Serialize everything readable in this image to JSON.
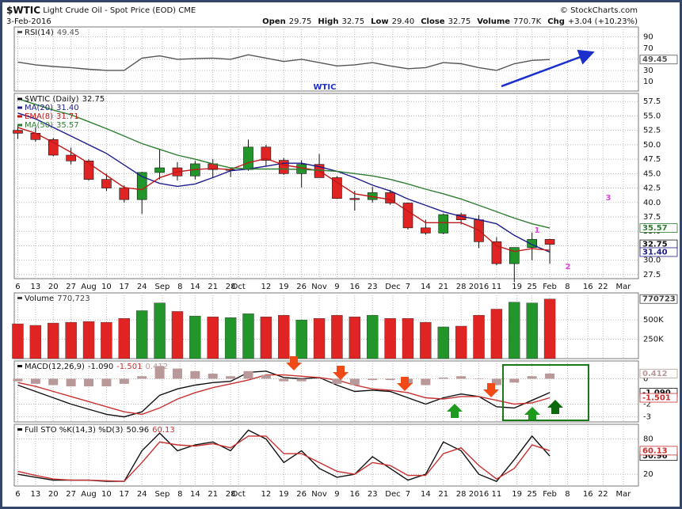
{
  "header": {
    "symbol": "$WTIC",
    "name": "Light Crude Oil - Spot Price (EOD)",
    "exchange": "CME",
    "date": "3-Feb-2016",
    "credit": "© StockCharts.com",
    "quote": [
      [
        "Open",
        "29.75"
      ],
      [
        "High",
        "32.75"
      ],
      [
        "Low",
        "29.40"
      ],
      [
        "Close",
        "32.75"
      ],
      [
        "Volume",
        "770.7K"
      ],
      [
        "Chg",
        "+3.04 (+10.23%)"
      ]
    ]
  },
  "chart_data": [
    {
      "type": "line",
      "legend": "RSI(14)",
      "annotations": [
        "WTIC"
      ],
      "x": [
        0,
        1,
        2,
        3,
        4,
        5,
        6,
        7,
        8,
        9,
        10,
        11,
        12,
        13,
        14,
        15,
        16,
        17,
        18,
        19,
        20,
        21,
        22,
        23,
        24,
        25,
        26,
        27,
        28,
        29,
        30
      ],
      "xlim": [
        -0.2,
        35
      ],
      "ylim": [
        -7,
        108
      ],
      "yticks": [
        90,
        70,
        50,
        30,
        10
      ],
      "series": [
        {
          "color": "#555555",
          "values": [
            45,
            40,
            37,
            35,
            32,
            30,
            30,
            52,
            56,
            50,
            51,
            52,
            50,
            58,
            52,
            46,
            50,
            44,
            38,
            40,
            44,
            38,
            33,
            35,
            44,
            42,
            35,
            30,
            42,
            48,
            49.45
          ]
        }
      ]
    },
    {
      "type": "candlestick",
      "name": "$WTIC (Daily)",
      "up_color": "#22962a",
      "down_color": "#e02424",
      "annotations": [
        "1",
        "2",
        "3"
      ],
      "x": [
        0,
        1,
        2,
        3,
        4,
        5,
        6,
        7,
        8,
        9,
        10,
        11,
        12,
        13,
        14,
        15,
        16,
        17,
        18,
        19,
        20,
        21,
        22,
        23,
        24,
        25,
        26,
        27,
        28,
        29,
        30
      ],
      "open": [
        52.5,
        52,
        50.9,
        48.2,
        47.2,
        44,
        42.5,
        40.5,
        45.2,
        46,
        44.6,
        46.7,
        45.7,
        45.7,
        49.6,
        47.3,
        45,
        46.6,
        44.3,
        40.7,
        40.5,
        41.7,
        39.9,
        35.6,
        34.7,
        37.9,
        37,
        33.2,
        29.4,
        32.2,
        33.6
      ],
      "high": [
        53.5,
        53,
        51.2,
        49.5,
        47.5,
        45,
        43,
        45.3,
        49.3,
        47,
        47.2,
        47.5,
        46,
        50.9,
        50,
        47.7,
        47.3,
        48.4,
        44.6,
        42,
        42.7,
        42.2,
        40,
        37,
        38.1,
        38.2,
        37.8,
        34,
        32.2,
        34.8,
        33.7
      ],
      "low": [
        51,
        50.5,
        48,
        46.6,
        43.8,
        42,
        40,
        38,
        44,
        43.8,
        44,
        44.3,
        44.4,
        45.5,
        46.2,
        44.8,
        42.6,
        44.3,
        40.6,
        38.6,
        40,
        39.6,
        35.3,
        34.4,
        34.5,
        36.2,
        32.1,
        29.1,
        26.2,
        30,
        29.4
      ],
      "close": [
        52,
        50.9,
        48.2,
        47.2,
        44,
        42.5,
        40.5,
        45.2,
        46,
        44.6,
        46.7,
        45.7,
        45.7,
        49.6,
        47.3,
        45,
        46.6,
        44.3,
        40.7,
        40.5,
        41.7,
        39.9,
        35.6,
        34.7,
        37.9,
        37,
        33.2,
        29.4,
        32.2,
        33.6,
        32.75
      ],
      "series": [
        {
          "name": "MA(20)",
          "color": "#1c1c8c",
          "values": [
            55.5,
            54.5,
            53,
            51.5,
            50,
            48.5,
            46.5,
            44.5,
            43.3,
            42.8,
            43.2,
            44.3,
            45.5,
            45.8,
            46.3,
            46.8,
            46.8,
            46.2,
            45.4,
            44.3,
            43,
            42,
            40.6,
            39.5,
            38.4,
            37.6,
            37,
            36.3,
            34.3,
            32.7,
            31.4
          ],
          "value_labels": [
            null,
            null,
            null,
            null,
            null,
            null,
            null,
            null,
            null,
            null,
            null,
            null,
            null,
            null,
            null,
            null,
            null,
            null,
            null,
            null,
            null,
            null,
            null,
            null,
            null,
            null,
            null,
            null,
            null,
            null,
            "31.40"
          ]
        },
        {
          "name": "EMA(8)",
          "color": "#c01818",
          "tagged": false,
          "values": [
            53,
            52,
            50.4,
            48.7,
            46.8,
            44.7,
            42.6,
            42.2,
            44.3,
            45.3,
            45.7,
            45.9,
            45.7,
            46.9,
            47.6,
            46.5,
            46,
            45.5,
            43.5,
            41.5,
            41,
            40.5,
            38.5,
            36.5,
            36.5,
            36.5,
            35.2,
            32.5,
            31.5,
            32,
            31.71
          ]
        },
        {
          "name": "MA(50)",
          "color": "#2e7d32",
          "values": [
            58,
            57,
            56,
            55.2,
            54,
            52.8,
            51.5,
            50.2,
            49.2,
            48.2,
            47.5,
            46.7,
            46,
            45.8,
            45.8,
            45.8,
            45.7,
            45.6,
            45.4,
            45,
            44.6,
            44,
            43.2,
            42.3,
            41.5,
            40.6,
            39.5,
            38.4,
            37.3,
            36.3,
            35.57
          ]
        }
      ],
      "xlim": [
        -0.2,
        35
      ],
      "ylim": [
        26.8,
        58.9
      ],
      "yticks": [
        57.5,
        {
          "value": 55,
          "label": "55.0"
        },
        52.5,
        {
          "value": 50,
          "label": "50.0"
        },
        47.5,
        {
          "value": 45,
          "label": "45.0"
        },
        42.5,
        {
          "value": 40,
          "label": "40.0"
        },
        37.5,
        {
          "value": 35,
          "label": "35.0"
        },
        32.5,
        {
          "value": 30,
          "label": "30.0"
        },
        27.5
      ],
      "xticks": [
        {
          "value": 0,
          "label": "6"
        },
        {
          "value": 1,
          "label": "13"
        },
        {
          "value": 2,
          "label": "20"
        },
        {
          "value": 3,
          "label": "27"
        },
        {
          "value": 4,
          "label": "Aug"
        },
        {
          "value": 5,
          "label": "10"
        },
        {
          "value": 6,
          "label": "17"
        },
        {
          "value": 7,
          "label": "24"
        },
        {
          "value": 8.15,
          "label": "Sep"
        },
        {
          "value": 9.15,
          "label": "8"
        },
        {
          "value": 10,
          "label": "14"
        },
        {
          "value": 11,
          "label": "21"
        },
        {
          "value": 12,
          "label": "28"
        },
        {
          "value": 12.45,
          "label": "Oct"
        },
        {
          "value": 14,
          "label": "12"
        },
        {
          "value": 15,
          "label": "19"
        },
        {
          "value": 16,
          "label": "26"
        },
        {
          "value": 17,
          "label": "Nov"
        },
        {
          "value": 18,
          "label": "9"
        },
        {
          "value": 19,
          "label": "16"
        },
        {
          "value": 20,
          "label": "23"
        },
        {
          "value": 21.15,
          "label": "Dec"
        },
        {
          "value": 22,
          "label": "7"
        },
        {
          "value": 23,
          "label": "14"
        },
        {
          "value": 24,
          "label": "21"
        },
        {
          "value": 25,
          "label": "28"
        },
        {
          "value": 26,
          "label": "2016"
        },
        {
          "value": 27,
          "label": "11"
        },
        {
          "value": 28.15,
          "label": "19"
        },
        {
          "value": 29,
          "label": "25"
        },
        {
          "value": 30,
          "label": "Feb"
        },
        {
          "value": 31,
          "label": "8"
        },
        {
          "value": 32.15,
          "label": "16"
        },
        {
          "value": 33,
          "label": "22"
        },
        {
          "value": 34.15,
          "label": "Mar"
        }
      ]
    },
    {
      "type": "bar",
      "legend": "Volume",
      "x": [
        0,
        1,
        2,
        3,
        4,
        5,
        6,
        7,
        8,
        9,
        10,
        11,
        12,
        13,
        14,
        15,
        16,
        17,
        18,
        19,
        20,
        21,
        22,
        23,
        24,
        25,
        26,
        27,
        28,
        29,
        30
      ],
      "xlim": [
        -0.2,
        35
      ],
      "ylim": [
        0,
        850000
      ],
      "yticks": [
        {
          "value": 500000,
          "label": "500K"
        },
        {
          "value": 250000,
          "label": "250K"
        }
      ],
      "series": [
        {
          "color": "#444444",
          "legend_value": "770,723",
          "values": [
            450000,
            430000,
            460000,
            470000,
            480000,
            470000,
            520000,
            620000,
            720000,
            610000,
            550000,
            540000,
            530000,
            580000,
            540000,
            560000,
            500000,
            520000,
            560000,
            540000,
            560000,
            520000,
            520000,
            470000,
            410000,
            420000,
            560000,
            640000,
            730000,
            720000,
            770723
          ]
        }
      ]
    },
    {
      "type": "line",
      "legend": "MACD(12,26,9)",
      "x": [
        0,
        1,
        2,
        3,
        4,
        5,
        6,
        7,
        8,
        9,
        10,
        11,
        12,
        13,
        14,
        15,
        16,
        17,
        18,
        19,
        20,
        21,
        22,
        23,
        24,
        25,
        26,
        27,
        28,
        29,
        30
      ],
      "xlim": [
        -0.2,
        35
      ],
      "ylim": [
        -3.4,
        1.4
      ],
      "yticks": [
        0,
        -2,
        -3
      ],
      "series": [
        {
          "color": "#111111",
          "values": [
            -0.5,
            -1,
            -1.5,
            -2,
            -2.4,
            -2.8,
            -3,
            -2.6,
            -1.3,
            -0.8,
            -0.5,
            -0.3,
            -0.2,
            0.5,
            0.6,
            0.1,
            0,
            0.1,
            -0.5,
            -1,
            -0.9,
            -1,
            -1.5,
            -2,
            -1.5,
            -1.2,
            -1.4,
            -2.2,
            -2.3,
            -1.7,
            -1.09
          ],
          "value_labels": [
            null,
            null,
            null,
            null,
            null,
            null,
            null,
            null,
            null,
            null,
            null,
            null,
            null,
            null,
            null,
            null,
            null,
            null,
            null,
            null,
            null,
            null,
            null,
            null,
            null,
            null,
            null,
            null,
            null,
            null,
            "-1.090"
          ]
        },
        {
          "color": "#c83030",
          "values": [
            -0.3,
            -0.6,
            -1,
            -1.4,
            -1.8,
            -2.2,
            -2.6,
            -2.8,
            -2.3,
            -1.6,
            -1.1,
            -0.7,
            -0.4,
            -0.1,
            0.3,
            0.3,
            0.2,
            0.1,
            -0.1,
            -0.5,
            -0.8,
            -0.9,
            -1.1,
            -1.5,
            -1.6,
            -1.4,
            -1.4,
            -1.7,
            -2,
            -1.9,
            -1.501
          ]
        },
        {
          "color": "#b89898",
          "style": "histogram",
          "values": [
            -0.2,
            -0.4,
            -0.5,
            -0.6,
            -0.6,
            -0.6,
            -0.4,
            0.2,
            1,
            0.8,
            0.6,
            0.4,
            0.2,
            0.6,
            0.3,
            -0.2,
            -0.2,
            0,
            -0.4,
            -0.5,
            -0.1,
            -0.1,
            -0.4,
            -0.5,
            0.1,
            0.2,
            0,
            -0.5,
            -0.3,
            0.2,
            0.412
          ]
        }
      ]
    },
    {
      "type": "line",
      "legend": "Full STO %K(14,3) %D(3)",
      "x": [
        0,
        1,
        2,
        3,
        4,
        5,
        6,
        7,
        8,
        9,
        10,
        11,
        12,
        13,
        14,
        15,
        16,
        17,
        18,
        19,
        20,
        21,
        22,
        23,
        24,
        25,
        26,
        27,
        28,
        29,
        30
      ],
      "xlim": [
        -0.2,
        35
      ],
      "ylim": [
        0,
        105
      ],
      "yticks": [
        80,
        20
      ],
      "series": [
        {
          "color": "#111111",
          "values": [
            20,
            15,
            10,
            10,
            10,
            8,
            8,
            60,
            90,
            60,
            70,
            75,
            60,
            95,
            80,
            40,
            60,
            30,
            15,
            20,
            50,
            30,
            10,
            20,
            75,
            60,
            20,
            8,
            45,
            85,
            50.96
          ]
        },
        {
          "color": "#c83030",
          "values": [
            25,
            18,
            12,
            10,
            10,
            9,
            8,
            40,
            75,
            70,
            68,
            72,
            65,
            85,
            85,
            55,
            55,
            40,
            25,
            20,
            40,
            35,
            18,
            18,
            55,
            65,
            35,
            12,
            30,
            70,
            60.13
          ]
        }
      ],
      "xticks": [
        {
          "value": 0,
          "label": "6"
        },
        {
          "value": 1,
          "label": "13"
        },
        {
          "value": 2,
          "label": "20"
        },
        {
          "value": 3,
          "label": "27"
        },
        {
          "value": 4,
          "label": "Aug"
        },
        {
          "value": 5,
          "label": "10"
        },
        {
          "value": 6,
          "label": "17"
        },
        {
          "value": 7,
          "label": "24"
        },
        {
          "value": 8.15,
          "label": "Sep"
        },
        {
          "value": 9.15,
          "label": "8"
        },
        {
          "value": 10,
          "label": "14"
        },
        {
          "value": 11,
          "label": "21"
        },
        {
          "value": 12,
          "label": "28"
        },
        {
          "value": 12.45,
          "label": "Oct"
        },
        {
          "value": 14,
          "label": "12"
        },
        {
          "value": 15,
          "label": "19"
        },
        {
          "value": 16,
          "label": "26"
        },
        {
          "value": 17,
          "label": "Nov"
        },
        {
          "value": 18,
          "label": "9"
        },
        {
          "value": 19,
          "label": "16"
        },
        {
          "value": 20,
          "label": "23"
        },
        {
          "value": 21.15,
          "label": "Dec"
        },
        {
          "value": 22,
          "label": "7"
        },
        {
          "value": 23,
          "label": "14"
        },
        {
          "value": 24,
          "label": "21"
        },
        {
          "value": 25,
          "label": "28"
        },
        {
          "value": 26,
          "label": "2016"
        },
        {
          "value": 27,
          "label": "11"
        },
        {
          "value": 28.15,
          "label": "19"
        },
        {
          "value": 29,
          "label": "25"
        },
        {
          "value": 30,
          "label": "Feb"
        },
        {
          "value": 31,
          "label": "8"
        },
        {
          "value": 32.15,
          "label": "16"
        },
        {
          "value": 33,
          "label": "22"
        },
        {
          "value": 34.15,
          "label": "Mar"
        }
      ]
    }
  ]
}
